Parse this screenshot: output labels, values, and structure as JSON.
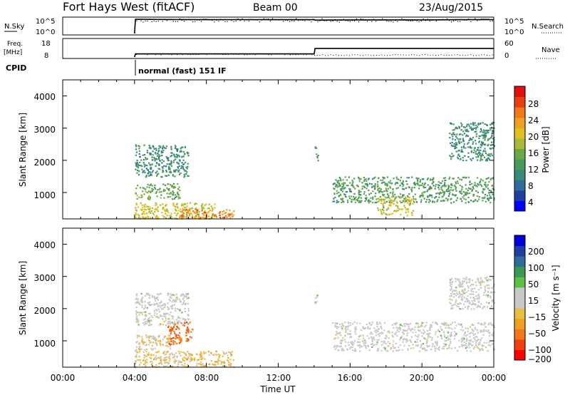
{
  "header": {
    "radar": "Fort Hays West (fitACF)",
    "beam": "Beam 00",
    "date": "23/Aug/2015"
  },
  "top_panels": {
    "nsky_label": "N.Sky",
    "nsearch_label": "N.Search",
    "freq_label_line1": "Freq.",
    "freq_label_line2": "[MHz]",
    "nave_label": "Nave",
    "cpid_label": "CPID",
    "cpid_text": "normal (fast) 151 IF",
    "noise_ticks": [
      "10^5",
      "10^0"
    ],
    "noise_ticks_right": [
      "10^5",
      "10^0"
    ],
    "freq_ticks": [
      "18",
      "8"
    ],
    "nave_ticks": [
      "60",
      "0"
    ]
  },
  "axes": {
    "xlabel": "Time UT",
    "xticks": [
      "00:00",
      "04:00",
      "08:00",
      "12:00",
      "16:00",
      "20:00",
      "00:00"
    ],
    "ylabel": "Slant Range [km]",
    "yticks": [
      "4000",
      "3000",
      "2000",
      "1000"
    ]
  },
  "colorbars": {
    "power": {
      "label": "Power [dB]",
      "ticks": [
        "28",
        "24",
        "20",
        "16",
        "12",
        "8",
        "4"
      ],
      "colors": [
        "#0000ff",
        "#1f3fa0",
        "#2f6e9a",
        "#3a8a78",
        "#4a9a5a",
        "#6aa84a",
        "#a9b93a",
        "#e2c020",
        "#f0a020",
        "#f07818",
        "#e84010",
        "#e01010"
      ]
    },
    "velocity": {
      "label": "Velocity [m s⁻¹]",
      "ticks": [
        "200",
        "100",
        "50",
        "15",
        "−15",
        "−50",
        "−100",
        "−200"
      ],
      "colors": [
        "#ff0000",
        "#f04010",
        "#f07818",
        "#f0a020",
        "#e8c040",
        "#c8c8c8",
        "#c8c8c8",
        "#5ec040",
        "#3a9a50",
        "#2f6e9a",
        "#1f3fa0",
        "#0000dd"
      ]
    }
  },
  "chart_data": [
    {
      "type": "line",
      "title": "N.Sky / N.Search",
      "xlabel": "",
      "ylabel": "N.Sky",
      "yscale": "log",
      "ylim": [
        1,
        100000
      ],
      "x": [
        0,
        4,
        4.05,
        6,
        8,
        10,
        12,
        14,
        14.05,
        16,
        18,
        20,
        22,
        24
      ],
      "series": [
        {
          "name": "N.Sky",
          "values": [
            null,
            1,
            100000,
            80000,
            70000,
            75000,
            70000,
            70000,
            50000,
            60000,
            60000,
            60000,
            70000,
            70000
          ]
        }
      ]
    },
    {
      "type": "line",
      "title": "Freq. / Nave",
      "ylabel": "Freq. [MHz]",
      "ylim": [
        8,
        18
      ],
      "x": [
        0,
        4,
        4.05,
        14,
        14.05,
        24
      ],
      "series": [
        {
          "name": "Freq.",
          "values": [
            null,
            8,
            10,
            10,
            13.5,
            13.5
          ]
        }
      ]
    },
    {
      "type": "heatmap",
      "title": "",
      "xlabel": "Time UT",
      "ylabel": "Slant Range [km]",
      "quantity": "Power [dB]",
      "xlim": [
        0,
        24
      ],
      "ylim": [
        180,
        4500
      ],
      "xticks": [
        0,
        4,
        8,
        12,
        16,
        20,
        24
      ],
      "yticks": [
        1000,
        2000,
        3000,
        4000
      ],
      "clim": [
        0,
        31
      ],
      "regions": [
        {
          "t0": 4.0,
          "t1": 7.0,
          "r0": 1500,
          "r1": 2500,
          "value": 10
        },
        {
          "t0": 4.0,
          "t1": 6.5,
          "r0": 800,
          "r1": 1300,
          "value": 14
        },
        {
          "t0": 4.0,
          "t1": 8.5,
          "r0": 200,
          "r1": 700,
          "value": 18
        },
        {
          "t0": 6.5,
          "t1": 9.5,
          "r0": 200,
          "r1": 500,
          "value": 24
        },
        {
          "t0": 14.0,
          "t1": 14.2,
          "r0": 2000,
          "r1": 2500,
          "value": 12
        },
        {
          "t0": 15.0,
          "t1": 24.0,
          "r0": 700,
          "r1": 1500,
          "value": 12
        },
        {
          "t0": 17.5,
          "t1": 19.5,
          "r0": 300,
          "r1": 900,
          "value": 18
        },
        {
          "t0": 21.5,
          "t1": 24.0,
          "r0": 2000,
          "r1": 3200,
          "value": 10
        }
      ]
    },
    {
      "type": "heatmap",
      "title": "",
      "xlabel": "Time UT",
      "ylabel": "Slant Range [km]",
      "quantity": "Velocity [m s⁻¹]",
      "xlim": [
        0,
        24
      ],
      "ylim": [
        180,
        4500
      ],
      "xticks": [
        0,
        4,
        8,
        12,
        16,
        20,
        24
      ],
      "yticks": [
        1000,
        2000,
        3000,
        4000
      ],
      "clim": [
        -250,
        250
      ],
      "regions": [
        {
          "t0": 4.0,
          "t1": 7.0,
          "r0": 1500,
          "r1": 2500,
          "value": 0
        },
        {
          "t0": 4.0,
          "t1": 6.0,
          "r0": 700,
          "r1": 1200,
          "value": -50
        },
        {
          "t0": 5.8,
          "t1": 7.2,
          "r0": 900,
          "r1": 1600,
          "value": -150
        },
        {
          "t0": 4.0,
          "t1": 9.5,
          "r0": 200,
          "r1": 700,
          "value": -60
        },
        {
          "t0": 14.0,
          "t1": 14.2,
          "r0": 2000,
          "r1": 2500,
          "value": 40
        },
        {
          "t0": 15.0,
          "t1": 24.0,
          "r0": 700,
          "r1": 1600,
          "value": 0
        },
        {
          "t0": 21.5,
          "t1": 24.0,
          "r0": 2000,
          "r1": 3000,
          "value": 0
        }
      ]
    }
  ]
}
